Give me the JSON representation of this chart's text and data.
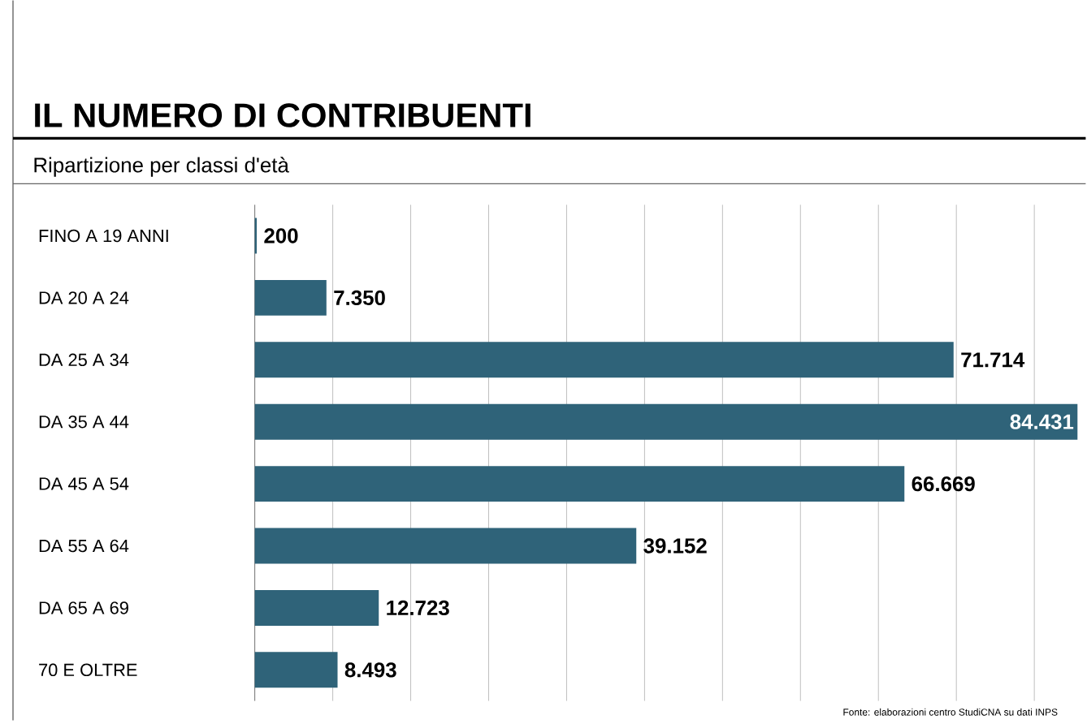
{
  "chart_data": {
    "type": "bar",
    "orientation": "horizontal",
    "title": "IL NUMERO DI CONTRIBUENTI",
    "subtitle": "Ripartizione per classi d'età",
    "categories": [
      "FINO A 19 ANNI",
      "DA 20 A 24",
      "DA 25 A 34",
      "DA 35 A 44",
      "DA 45 A 54",
      "DA 55 A 64",
      "DA 65 A 69",
      "70 E OLTRE"
    ],
    "values": [
      200,
      7350,
      71714,
      84431,
      66669,
      39152,
      12723,
      8493
    ],
    "value_labels": [
      "200",
      "7.350",
      "71.714",
      "84.431",
      "66.669",
      "39.152",
      "12.723",
      "8.493"
    ],
    "color": "#2f6379",
    "xticks": [
      {
        "value": 8000,
        "label": null
      },
      {
        "value": 16000,
        "label": null
      },
      {
        "value": 24000,
        "label": null
      },
      {
        "value": 32000,
        "label": null
      },
      {
        "value": 40000,
        "label": null
      },
      {
        "value": 48000,
        "label": null
      },
      {
        "value": 56000,
        "label": null
      },
      {
        "value": 64000,
        "label": null
      },
      {
        "value": 72000,
        "label": null
      },
      {
        "value": 80000,
        "label": null
      }
    ],
    "grid": "x",
    "tick_labels": "y",
    "annotations": [
      "Fonte: elaborazioni centro StudiCNA su dati INPS"
    ]
  }
}
